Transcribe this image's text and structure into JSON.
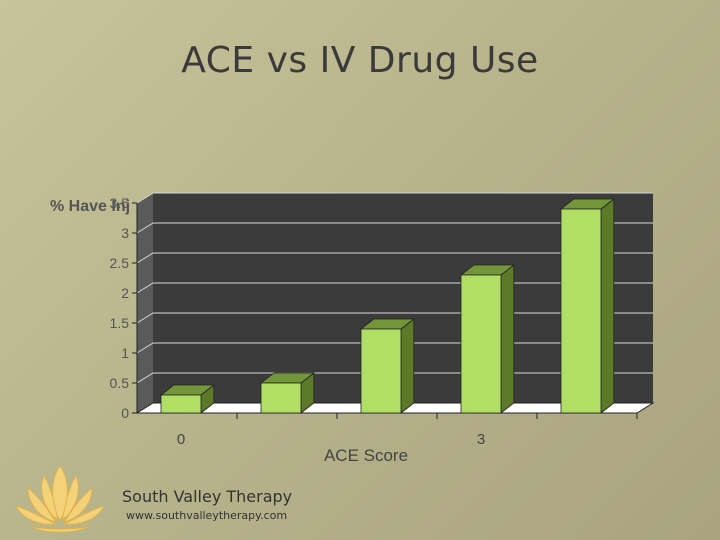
{
  "slide": {
    "title": "ACE vs IV Drug Use"
  },
  "chart_data": {
    "type": "bar",
    "ylabel": "% Have Inj",
    "xlabel": "ACE Score",
    "ylim": [
      0,
      3.5
    ],
    "yticks": [
      "0",
      "0.5",
      "1",
      "1.5",
      "2",
      "2.5",
      "3",
      "3.5"
    ],
    "xtick_labels": [
      {
        "label": "0",
        "category_index": 0
      },
      {
        "label": "3",
        "category_index": 3
      }
    ],
    "values": [
      0.3,
      0.5,
      1.4,
      2.3,
      3.4
    ],
    "colors": {
      "bar_front": "#b1de64",
      "bar_top": "#73963a",
      "bar_side": "#5c7a28",
      "back_wall": "#3b3b3b",
      "side_wall": "#5a5a5a",
      "floor": "#ffffff"
    }
  },
  "branding": {
    "name": "South Valley Therapy",
    "url": "www.southvalleytherapy.com",
    "logo_icon": "lotus-icon"
  }
}
